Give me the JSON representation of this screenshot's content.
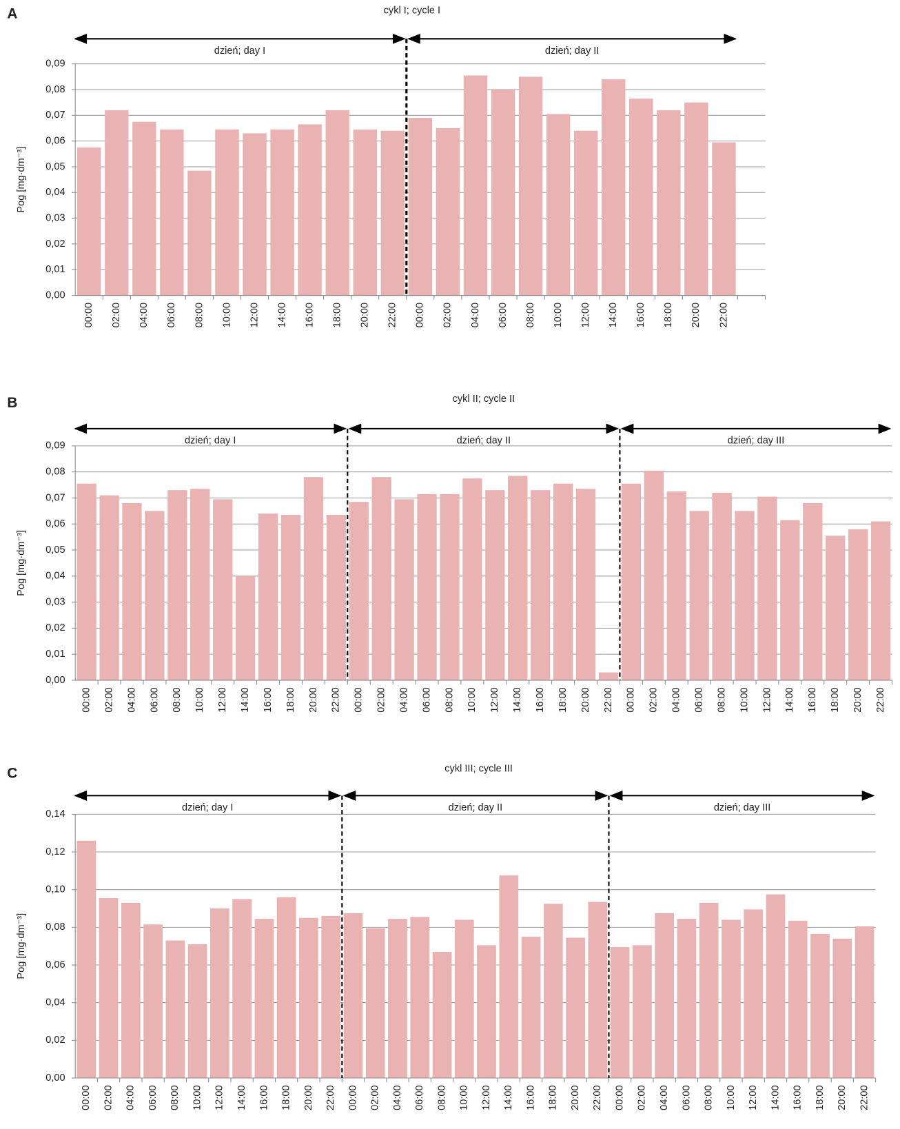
{
  "chart_data": [
    {
      "type": "bar",
      "panel": "A",
      "title": "cykl I; cycle I",
      "ylabel": "Pog [mg·dm⁻³]",
      "color": "#e9b3b3",
      "days": [
        "dzień; day I",
        "dzień; day II"
      ],
      "categories": [
        "00:00",
        "02:00",
        "04:00",
        "06:00",
        "08:00",
        "10:00",
        "12:00",
        "14:00",
        "16:00",
        "18:00",
        "20:00",
        "22:00",
        "00:00",
        "02:00",
        "04:00",
        "06:00",
        "08:00",
        "10:00",
        "12:00",
        "14:00",
        "16:00",
        "18:00",
        "20:00",
        "22:00",
        null
      ],
      "values": [
        0.0575,
        0.072,
        0.0675,
        0.0645,
        0.0485,
        0.0645,
        0.063,
        0.0645,
        0.0665,
        0.072,
        0.0645,
        0.064,
        0.069,
        0.065,
        0.0855,
        0.08,
        0.085,
        0.0705,
        0.064,
        0.084,
        0.0765,
        0.072,
        0.075,
        0.0595,
        null
      ],
      "ylim": [
        0,
        0.09
      ],
      "yticks": [
        {
          "value": 0,
          "label": "0,00"
        },
        {
          "value": 0.01,
          "label": "0,01"
        },
        {
          "value": 0.02,
          "label": "0,02"
        },
        {
          "value": 0.03,
          "label": "0,03"
        },
        {
          "value": 0.04,
          "label": "0,04"
        },
        {
          "value": 0.05,
          "label": "0,05"
        },
        {
          "value": 0.06,
          "label": "0,06"
        },
        {
          "value": 0.07,
          "label": "0,07"
        },
        {
          "value": 0.08,
          "label": "0,08"
        },
        {
          "value": 0.09,
          "label": "0,09"
        }
      ],
      "grid": true
    },
    {
      "type": "bar",
      "panel": "B",
      "title": "cykl II; cycle II",
      "ylabel": "Pog [mg·dm⁻³]",
      "color": "#e9b3b3",
      "days": [
        "dzień; day I",
        "dzień; day II",
        "dzień; day III"
      ],
      "categories": [
        "00:00",
        "02:00",
        "04:00",
        "06:00",
        "08:00",
        "10:00",
        "12:00",
        "14:00",
        "16:00",
        "18:00",
        "20:00",
        "22:00",
        "00:00",
        "02:00",
        "04:00",
        "06:00",
        "08:00",
        "10:00",
        "12:00",
        "14:00",
        "16:00",
        "18:00",
        "20:00",
        "22:00",
        "00:00",
        "02:00",
        "04:00",
        "06:00",
        "08:00",
        "10:00",
        "12:00",
        "14:00",
        "16:00",
        "18:00",
        "20:00",
        "22:00"
      ],
      "values": [
        0.0755,
        0.071,
        0.068,
        0.065,
        0.073,
        0.0735,
        0.0695,
        0.04,
        0.064,
        0.0635,
        0.078,
        0.0635,
        0.0685,
        0.078,
        0.0695,
        0.0715,
        0.0715,
        0.0775,
        0.073,
        0.0785,
        0.073,
        0.0755,
        0.0735,
        0.003,
        0.0755,
        0.0805,
        0.0725,
        0.065,
        0.072,
        0.065,
        0.0705,
        0.0615,
        0.068,
        0.0555,
        0.058,
        0.061
      ],
      "ylim": [
        0,
        0.09
      ],
      "yticks": [
        {
          "value": 0,
          "label": "0,00"
        },
        {
          "value": 0.01,
          "label": "0,01"
        },
        {
          "value": 0.02,
          "label": "0,02"
        },
        {
          "value": 0.03,
          "label": "0,03"
        },
        {
          "value": 0.04,
          "label": "0,04"
        },
        {
          "value": 0.05,
          "label": "0,05"
        },
        {
          "value": 0.06,
          "label": "0,06"
        },
        {
          "value": 0.07,
          "label": "0,07"
        },
        {
          "value": 0.08,
          "label": "0,08"
        },
        {
          "value": 0.09,
          "label": "0,09"
        }
      ],
      "grid": true
    },
    {
      "type": "bar",
      "panel": "C",
      "title": "cykl III; cycle III",
      "ylabel": "Pog [mg·dm⁻³]",
      "color": "#e9b3b3",
      "days": [
        "dzień; day I",
        "dzień; day II",
        "dzień; day III"
      ],
      "categories": [
        "00:00",
        "02:00",
        "04:00",
        "06:00",
        "08:00",
        "10:00",
        "12:00",
        "14:00",
        "16:00",
        "18:00",
        "20:00",
        "22:00",
        "00:00",
        "02:00",
        "04:00",
        "06:00",
        "08:00",
        "10:00",
        "12:00",
        "14:00",
        "16:00",
        "18:00",
        "20:00",
        "22:00",
        "00:00",
        "02:00",
        "04:00",
        "06:00",
        "08:00",
        "10:00",
        "12:00",
        "14:00",
        "16:00",
        "18:00",
        "20:00",
        "22:00"
      ],
      "values": [
        0.126,
        0.0955,
        0.093,
        0.0815,
        0.073,
        0.071,
        0.09,
        0.095,
        0.0845,
        0.096,
        0.085,
        0.086,
        0.0875,
        0.0795,
        0.0845,
        0.0855,
        0.067,
        0.084,
        0.0705,
        0.1075,
        0.075,
        0.0925,
        0.0745,
        0.0935,
        0.0695,
        0.0705,
        0.0875,
        0.0845,
        0.093,
        0.084,
        0.0895,
        0.0975,
        0.0835,
        0.0765,
        0.074,
        0.0805
      ],
      "ylim": [
        0,
        0.14
      ],
      "yticks": [
        {
          "value": 0,
          "label": "0,00"
        },
        {
          "value": 0.02,
          "label": "0,02"
        },
        {
          "value": 0.04,
          "label": "0,04"
        },
        {
          "value": 0.06,
          "label": "0,06"
        },
        {
          "value": 0.08,
          "label": "0,08"
        },
        {
          "value": 0.1,
          "label": "0,10"
        },
        {
          "value": 0.12,
          "label": "0,12"
        },
        {
          "value": 0.14,
          "label": "0,14"
        }
      ],
      "grid": true
    }
  ]
}
